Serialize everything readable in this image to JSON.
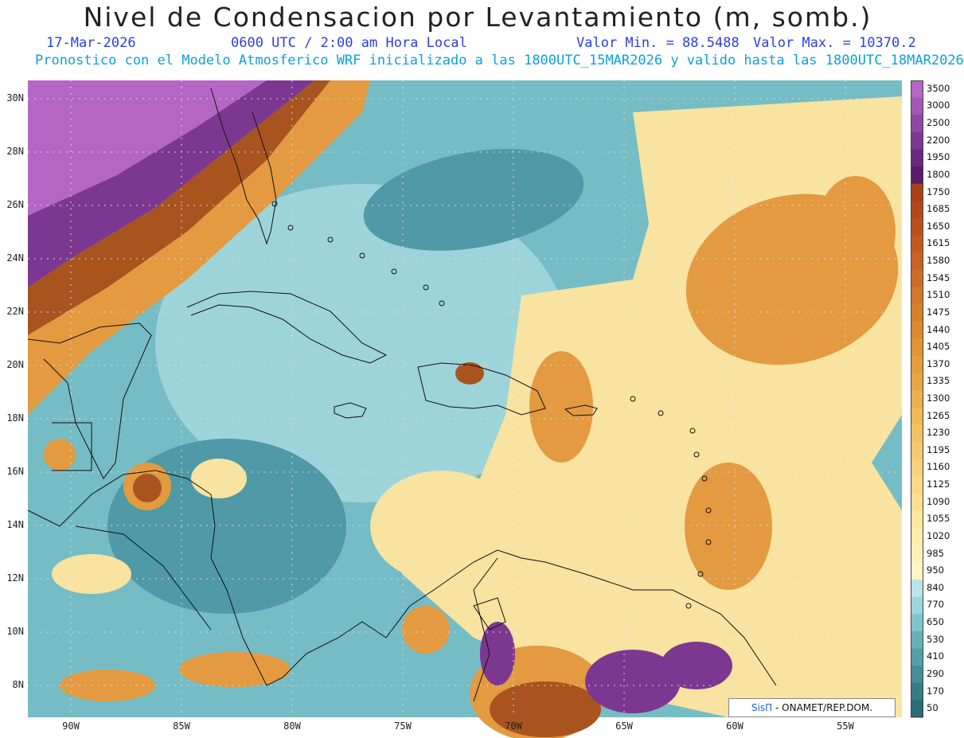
{
  "title": "Nivel de Condensacion por Levantamiento (m, somb.)",
  "date": "17-Mar-2026",
  "time": "0600 UTC / 2:00 am Hora Local",
  "value_min": "Valor Min. = 88.5488",
  "value_max": "Valor Max. = 10370.2",
  "model_info": "Pronostico con el Modelo Atmosferico WRF inicializado a las 1800UTC_15MAR2026 y valido hasta las  1800UTC_18MAR2026",
  "credit_logo": "SisΠ",
  "credit_text": " - ONAMET/REP.DOM.",
  "lat_labels": [
    "30N",
    "28N",
    "26N",
    "24N",
    "22N",
    "20N",
    "18N",
    "16N",
    "14N",
    "12N",
    "10N",
    "8N"
  ],
  "lon_labels": [
    "90W",
    "85W",
    "80W",
    "75W",
    "70W",
    "65W",
    "60W",
    "55W"
  ],
  "colorbar": {
    "labels": [
      "3500",
      "3000",
      "2500",
      "2200",
      "1950",
      "1800",
      "1750",
      "1685",
      "1650",
      "1615",
      "1580",
      "1545",
      "1510",
      "1475",
      "1440",
      "1405",
      "1370",
      "1335",
      "1300",
      "1265",
      "1230",
      "1195",
      "1160",
      "1125",
      "1090",
      "1055",
      "1020",
      "985",
      "950",
      "840",
      "770",
      "650",
      "530",
      "410",
      "290",
      "170",
      "50"
    ],
    "colors": [
      "#b566c4",
      "#a257b3",
      "#8f47a2",
      "#7c3890",
      "#68297d",
      "#581c69",
      "#a7401b",
      "#b3471c",
      "#bb501e",
      "#c25a20",
      "#c86322",
      "#cd6d25",
      "#d27628",
      "#d7802c",
      "#dc8931",
      "#e09337",
      "#e49c3e",
      "#e8a646",
      "#ebb04f",
      "#eeb959",
      "#f1c263",
      "#f3ca6e",
      "#f6d27a",
      "#f8d986",
      "#fae093",
      "#fbe6a0",
      "#fcecad",
      "#fdf1ba",
      "#fdf5c6",
      "#b8e4ea",
      "#9cd6dd",
      "#80c4cd",
      "#67b1bb",
      "#559fa9",
      "#458d98",
      "#377b87",
      "#2b6a77"
    ]
  },
  "map_colors": {
    "ocean_base": "#76bcc4",
    "ocean_light": "#9dd4da",
    "ocean_dark": "#4f9aa6",
    "dry_yellow": "#f8e3a0",
    "orange": "#e39a40",
    "brown": "#a9541e",
    "purple_high": "#7c3890",
    "purple_top": "#b566c4",
    "coast": "#111111",
    "grid": "#d8d8d8"
  }
}
